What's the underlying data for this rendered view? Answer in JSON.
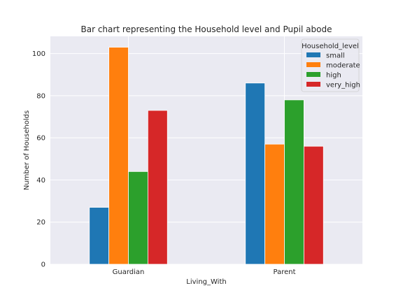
{
  "chart_data": {
    "type": "bar",
    "title": "Bar chart representing the Household level and Pupil abode",
    "xlabel": "Living_With",
    "ylabel": "Number of Households",
    "categories": [
      "Guardian",
      "Parent"
    ],
    "series": [
      {
        "name": "small",
        "color": "#1f77b4",
        "values": [
          27,
          86
        ]
      },
      {
        "name": "moderate",
        "color": "#ff7f0e",
        "values": [
          103,
          57
        ]
      },
      {
        "name": "high",
        "color": "#2ca02c",
        "values": [
          44,
          78
        ]
      },
      {
        "name": "very_high",
        "color": "#d62728",
        "values": [
          73,
          56
        ]
      }
    ],
    "ylim": [
      0,
      108.15
    ],
    "yticks": [
      0,
      20,
      40,
      60,
      80,
      100
    ],
    "grid": true,
    "background": "#eaeaf2",
    "legend": {
      "title": "Household_level",
      "placement": "top-right"
    }
  }
}
